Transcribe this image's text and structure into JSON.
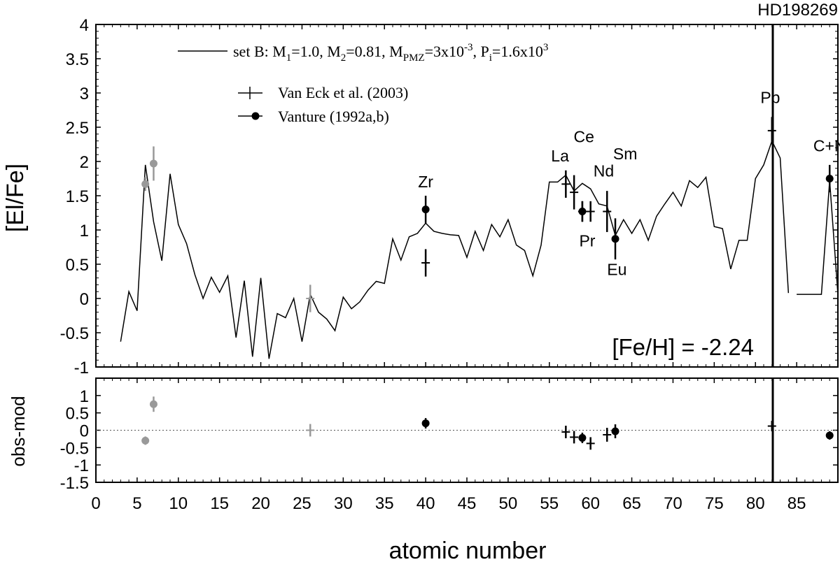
{
  "chart_data": [
    {
      "panel": "main",
      "type": "line",
      "title": "HD198269",
      "xlabel": "atomic number",
      "ylabel": "[El/Fe]",
      "xlim": [
        0,
        90
      ],
      "ylim": [
        -1,
        4
      ],
      "xticks": [
        "0",
        "5",
        "10",
        "15",
        "20",
        "25",
        "30",
        "35",
        "40",
        "45",
        "50",
        "55",
        "60",
        "65",
        "70",
        "75",
        "80",
        "85"
      ],
      "yticks": [
        "-1",
        "-0.5",
        "0",
        "0.5",
        "1",
        "1.5",
        "2",
        "2.5",
        "3",
        "3.5",
        "4"
      ],
      "annotation": "[Fe/H] = -2.24",
      "legend": {
        "model_label": "set B: M",
        "model_label_parts": [
          "set B: M",
          "1",
          "=1.0, M",
          "2",
          "=0.81, M",
          "PMZ",
          "=3x10",
          "-3",
          ", P",
          "i",
          "=1.6x10",
          "3"
        ],
        "obs1_label": "Van Eck et al. (2003)",
        "obs2_label": "Vanture (1992a,b)"
      },
      "model": {
        "name": "set B: M1=1.0, M2=0.81, MPMZ=3x10-3, Pi=1.6x10^3",
        "x": [
          3,
          4,
          5,
          6,
          7,
          8,
          9,
          10,
          11,
          12,
          13,
          14,
          15,
          16,
          17,
          18,
          19,
          20,
          21,
          22,
          23,
          24,
          25,
          26,
          27,
          28,
          29,
          30,
          31,
          32,
          33,
          34,
          35,
          36,
          37,
          38,
          39,
          40,
          41,
          42,
          43,
          44,
          45,
          46,
          47,
          48,
          49,
          50,
          51,
          52,
          53,
          54,
          55,
          56,
          57,
          58,
          59,
          60,
          61,
          62,
          63,
          64,
          65,
          66,
          67,
          68,
          69,
          70,
          71,
          72,
          73,
          74,
          75,
          76,
          77,
          78,
          79,
          80,
          81,
          82,
          83,
          84
        ],
        "y": [
          -0.63,
          0.1,
          -0.18,
          1.95,
          1.12,
          0.55,
          1.82,
          1.08,
          0.8,
          0.35,
          0.0,
          0.31,
          0.09,
          0.33,
          -0.57,
          0.26,
          -0.85,
          0.3,
          -0.88,
          -0.22,
          -0.28,
          0.0,
          -0.63,
          0.06,
          -0.2,
          -0.3,
          -0.47,
          0.02,
          -0.15,
          -0.05,
          0.12,
          0.25,
          0.22,
          0.87,
          0.56,
          0.9,
          0.95,
          1.1,
          0.98,
          0.95,
          0.93,
          0.92,
          0.6,
          0.98,
          0.7,
          1.08,
          0.9,
          1.15,
          0.78,
          0.7,
          0.33,
          0.78,
          1.7,
          1.7,
          1.8,
          1.57,
          1.68,
          1.6,
          1.38,
          1.35,
          0.92,
          1.15,
          0.95,
          1.15,
          0.85,
          1.2,
          1.38,
          1.55,
          1.35,
          1.72,
          1.62,
          1.77,
          1.05,
          1.02,
          0.43,
          0.85,
          0.85,
          1.75,
          1.95,
          2.3,
          2.05,
          0.08
        ]
      },
      "model_cn": {
        "name": "C+N",
        "x": [
          85,
          88,
          89,
          90
        ],
        "y": [
          0.06,
          0.06,
          1.72,
          0.06
        ]
      },
      "obs_van_eck": {
        "name": "Van Eck et al. (2003)",
        "x": [
          26,
          40,
          57,
          58,
          59,
          60,
          62,
          82
        ],
        "y": [
          0.0,
          0.52,
          1.67,
          1.55,
          1.27,
          1.27,
          1.27,
          2.45
        ],
        "err": [
          0.2,
          0.2,
          0.2,
          0.25,
          0.15,
          0.15,
          0.3,
          0.2
        ],
        "gray": [
          true,
          false,
          false,
          false,
          false,
          false,
          false,
          false
        ]
      },
      "obs_vanture": {
        "name": "Vanture (1992a,b)",
        "x": [
          6,
          7,
          40,
          59,
          63,
          89
        ],
        "y": [
          1.67,
          1.97,
          1.3,
          1.27,
          0.87,
          1.75
        ],
        "err": [
          0.1,
          0.25,
          0.2,
          0.15,
          0.3,
          0.2
        ],
        "gray": [
          true,
          true,
          false,
          false,
          false,
          false
        ]
      },
      "element_labels": [
        {
          "text": "Zr",
          "x": 40,
          "y": 1.62
        },
        {
          "text": "La",
          "x": 56.3,
          "y": 2.0
        },
        {
          "text": "Ce",
          "x": 59.2,
          "y": 2.28
        },
        {
          "text": "Nd",
          "x": 61.6,
          "y": 1.78
        },
        {
          "text": "Sm",
          "x": 64.2,
          "y": 2.03
        },
        {
          "text": "Pr",
          "x": 59.6,
          "y": 0.76
        },
        {
          "text": "Eu",
          "x": 63.2,
          "y": 0.34
        },
        {
          "text": "Pb",
          "x": 81.8,
          "y": 2.85
        },
        {
          "text": "C+N",
          "x": 89,
          "y": 2.15
        }
      ]
    },
    {
      "panel": "residual",
      "type": "scatter",
      "xlabel": "atomic number",
      "ylabel": "obs-mod",
      "xlim": [
        0,
        90
      ],
      "ylim": [
        -1.5,
        1.5
      ],
      "yticks": [
        "-1.5",
        "-1",
        "-0.5",
        "0",
        "0.5",
        "1"
      ],
      "obs_van_eck": {
        "x": [
          26,
          57,
          58,
          60,
          62,
          82
        ],
        "y": [
          0.0,
          -0.05,
          -0.2,
          -0.38,
          -0.13,
          0.12
        ],
        "err": [
          0.18,
          0.18,
          0.18,
          0.18,
          0.2,
          0.15
        ],
        "gray": [
          true,
          false,
          false,
          false,
          false,
          false
        ]
      },
      "obs_vanture": {
        "x": [
          6,
          7,
          40,
          59,
          63,
          89
        ],
        "y": [
          -0.3,
          0.75,
          0.2,
          -0.22,
          -0.03,
          -0.15
        ],
        "err": [
          0.12,
          0.22,
          0.15,
          0.15,
          0.2,
          0.12
        ],
        "gray": [
          true,
          true,
          false,
          false,
          false,
          false
        ]
      }
    }
  ]
}
